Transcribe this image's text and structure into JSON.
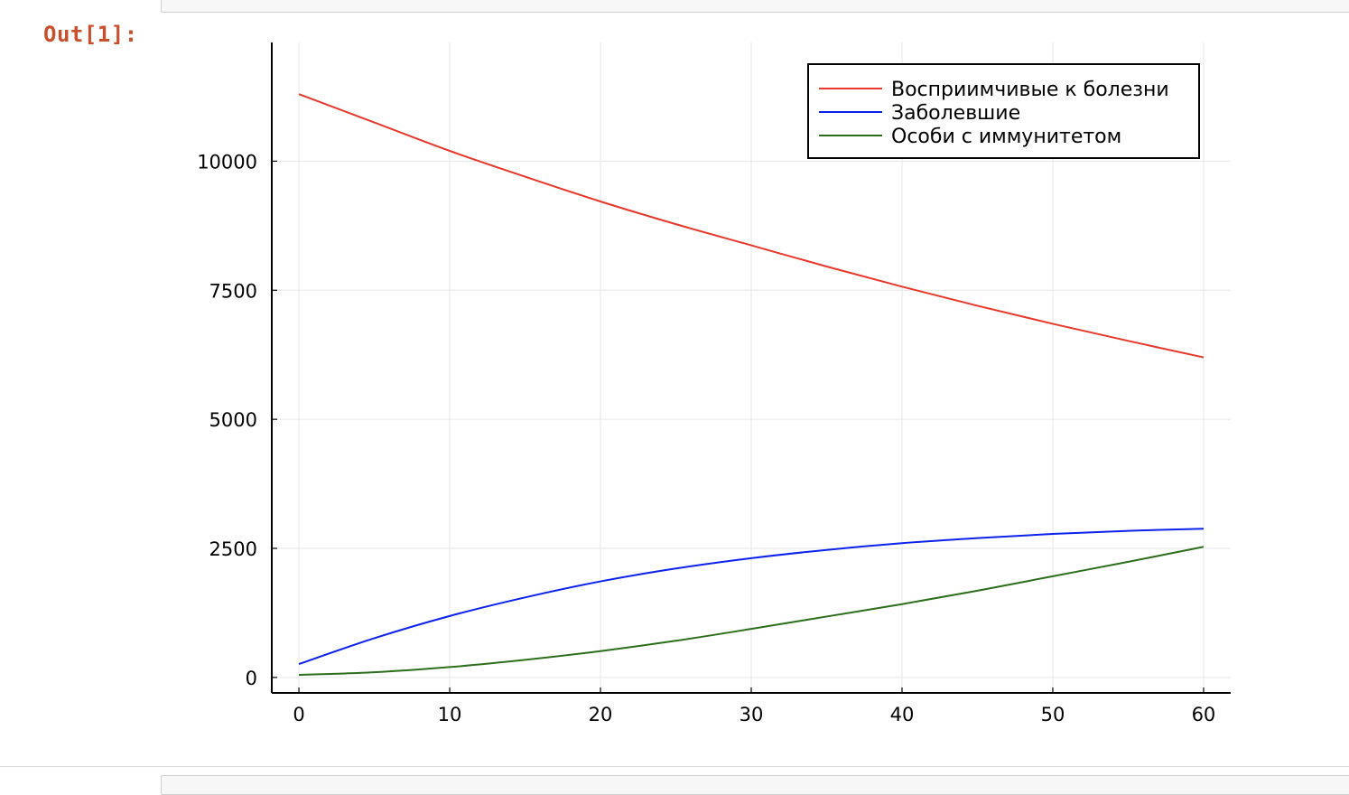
{
  "notebook": {
    "output_prompt": "Out[1]:"
  },
  "chart_data": {
    "type": "line",
    "title": "",
    "xlabel": "",
    "ylabel": "",
    "xlim": [
      -1.8,
      61.8
    ],
    "ylim": [
      -300,
      12300
    ],
    "xticks": [
      0,
      10,
      20,
      30,
      40,
      50,
      60
    ],
    "yticks": [
      0,
      2500,
      5000,
      7500,
      10000
    ],
    "grid": true,
    "legend_position": "top-right",
    "series": [
      {
        "name": "Восприимчивые к болезни",
        "color": "#e8382c",
        "x": [
          0,
          5,
          10,
          15,
          20,
          25,
          30,
          35,
          40,
          45,
          50,
          55,
          60
        ],
        "y": [
          11300,
          10750,
          10200,
          9700,
          9220,
          8780,
          8370,
          7960,
          7570,
          7200,
          6850,
          6520,
          6200
        ]
      },
      {
        "name": "Заболевшие",
        "color": "#0d21ed",
        "x": [
          0,
          5,
          10,
          15,
          20,
          25,
          30,
          35,
          40,
          45,
          50,
          55,
          60
        ],
        "y": [
          260,
          760,
          1190,
          1550,
          1860,
          2110,
          2310,
          2470,
          2600,
          2700,
          2780,
          2840,
          2880
        ]
      },
      {
        "name": "Особи с иммунитетом",
        "color": "#2c6e1b",
        "x": [
          0,
          5,
          10,
          15,
          20,
          25,
          30,
          35,
          40,
          45,
          50,
          55,
          60
        ],
        "y": [
          50,
          100,
          200,
          340,
          510,
          710,
          940,
          1180,
          1420,
          1680,
          1960,
          2240,
          2530
        ]
      }
    ]
  }
}
